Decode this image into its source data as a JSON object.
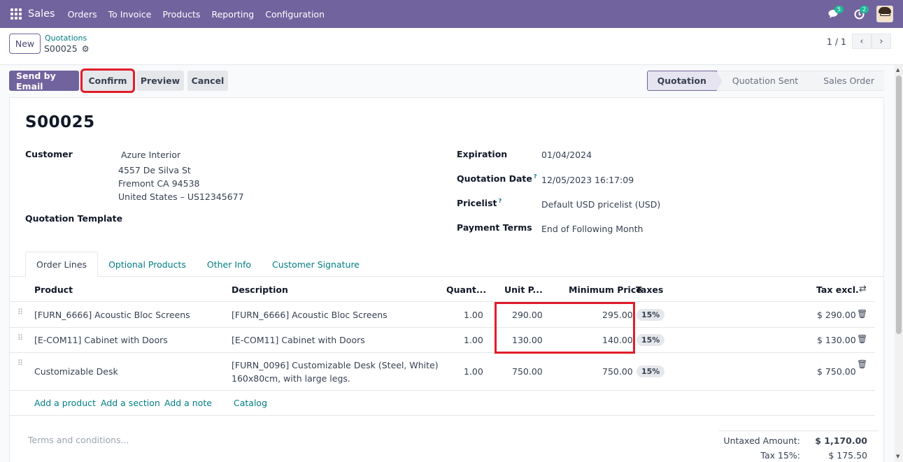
{
  "navbar": {
    "brand": "Sales",
    "items": [
      "Orders",
      "To Invoice",
      "Products",
      "Reporting",
      "Configuration"
    ],
    "messages_count": "5",
    "activities_count": "2"
  },
  "control": {
    "new_label": "New",
    "breadcrumb_parent": "Quotations",
    "breadcrumb_current": "S00025",
    "pager_value": "1 / 1"
  },
  "actions": {
    "send_email": "Send by Email",
    "confirm": "Confirm",
    "preview": "Preview",
    "cancel": "Cancel"
  },
  "status": {
    "stages": [
      "Quotation",
      "Quotation Sent",
      "Sales Order"
    ],
    "active": "Quotation"
  },
  "form": {
    "title": "S00025",
    "customer_label": "Customer",
    "customer_name": "Azure Interior",
    "address_line1": "4557 De Silva St",
    "address_line2": "Fremont CA 94538",
    "address_line3": "United States – US12345677",
    "template_label": "Quotation Template",
    "expiration_label": "Expiration",
    "expiration_value": "01/04/2024",
    "quotation_date_label": "Quotation Date",
    "quotation_date_value": "12/05/2023 16:17:09",
    "pricelist_label": "Pricelist",
    "pricelist_value": "Default USD pricelist (USD)",
    "payment_terms_label": "Payment Terms",
    "payment_terms_value": "End of Following Month",
    "help_mark": "?"
  },
  "tabs": [
    "Order Lines",
    "Optional Products",
    "Other Info",
    "Customer Signature"
  ],
  "table": {
    "headers": {
      "product": "Product",
      "description": "Description",
      "quantity": "Quant...",
      "unit_price": "Unit P...",
      "minimum_price": "Minimum Price",
      "taxes": "Taxes",
      "tax_excl": "Tax excl."
    },
    "rows": [
      {
        "product": "[FURN_6666] Acoustic Bloc Screens",
        "description": "[FURN_6666] Acoustic Bloc Screens",
        "quantity": "1.00",
        "unit_price": "290.00",
        "minimum_price": "295.00",
        "tax": "15%",
        "subtotal": "$ 290.00"
      },
      {
        "product": "[E-COM11] Cabinet with Doors",
        "description": "[E-COM11] Cabinet with Doors",
        "quantity": "1.00",
        "unit_price": "130.00",
        "minimum_price": "140.00",
        "tax": "15%",
        "subtotal": "$ 130.00"
      },
      {
        "product": "Customizable Desk",
        "description_line1": "[FURN_0096] Customizable Desk (Steel, White)",
        "description_line2": "160x80cm, with large legs.",
        "quantity": "1.00",
        "unit_price": "750.00",
        "minimum_price": "750.00",
        "tax": "15%",
        "subtotal": "$ 750.00"
      }
    ],
    "add_product": "Add a product",
    "add_section": "Add a section",
    "add_note": "Add a note",
    "catalog": "Catalog"
  },
  "footer": {
    "terms_placeholder": "Terms and conditions...",
    "untaxed_label": "Untaxed Amount:",
    "untaxed_value": "$ 1,170.00",
    "tax_label": "Tax 15%:",
    "tax_value": "$ 175.50"
  },
  "colors": {
    "brand": "#71639e",
    "link": "#017e84",
    "highlight": "#e11d2a"
  }
}
